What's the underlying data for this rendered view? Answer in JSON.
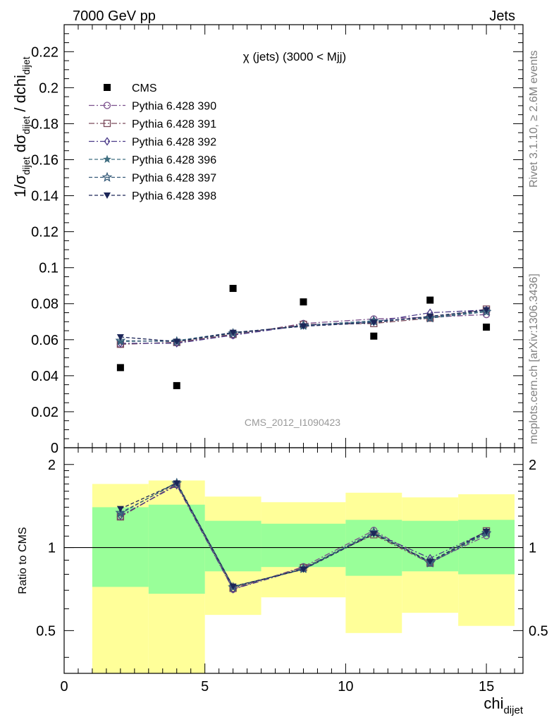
{
  "header": {
    "left": "7000 GeV pp",
    "right": "Jets"
  },
  "side_text": {
    "rivet": "Rivet 3.1.10, ≥ 2.6M events",
    "mcplots": "mcplots.cern.ch [arXiv:1306.3436]"
  },
  "chart_data": {
    "type": "scatter",
    "title": "χ (jets) (3000 < Mjj)",
    "analysis_label": "CMS_2012_I1090423",
    "xlabel": "chi",
    "xlabel_sub": "dijet",
    "ylabel_html": "1/σdijet dσdijet / dchidijet",
    "ylabel_parts": {
      "a": "1/σ",
      "a_sub": "dijet",
      "b": " dσ",
      "b_sub": "dijet",
      "c": " / dchi",
      "c_sub": "dijet"
    },
    "ratio_ylabel": "Ratio to CMS",
    "xlim": [
      0,
      16.3
    ],
    "ylim": [
      0,
      0.235
    ],
    "ratio_ylim": [
      0.35,
      2.3
    ],
    "x_ticks": [
      0,
      5,
      10,
      15
    ],
    "x_tick_labels": [
      "0",
      "5",
      "10",
      "15"
    ],
    "y_ticks": [
      0,
      0.02,
      0.04,
      0.06,
      0.08,
      0.1,
      0.12,
      0.14,
      0.16,
      0.18,
      0.2,
      0.22
    ],
    "y_tick_labels": [
      "0",
      "0.02",
      "0.04",
      "0.06",
      "0.08",
      "0.1",
      "0.12",
      "0.14",
      "0.16",
      "0.18",
      "0.2",
      "0.22"
    ],
    "ratio_ticks": [
      0.5,
      1,
      2
    ],
    "ratio_tick_labels": [
      "0.5",
      "1",
      "2"
    ],
    "legend_position": "top-left",
    "x": [
      2,
      4,
      6,
      8.5,
      11,
      13,
      15
    ],
    "bin_edges": [
      1,
      3,
      5,
      7,
      10,
      12,
      14,
      16
    ],
    "data": {
      "name": "CMS",
      "values": [
        0.0445,
        0.0345,
        0.0885,
        0.081,
        0.062,
        0.082,
        0.067
      ],
      "stat_band": [
        [
          0.72,
          1.4
        ],
        [
          0.68,
          1.43
        ],
        [
          0.82,
          1.25
        ],
        [
          0.85,
          1.22
        ],
        [
          0.79,
          1.26
        ],
        [
          0.82,
          1.25
        ],
        [
          0.8,
          1.26
        ]
      ],
      "total_band": [
        [
          0.3,
          1.7
        ],
        [
          0.3,
          1.75
        ],
        [
          0.57,
          1.53
        ],
        [
          0.66,
          1.46
        ],
        [
          0.49,
          1.58
        ],
        [
          0.58,
          1.52
        ],
        [
          0.52,
          1.56
        ]
      ]
    },
    "series": [
      {
        "name": "Pythia 6.428 390",
        "color": "#7b4f8c",
        "marker": "circle-open",
        "dash": "8,3,2,3",
        "values": [
          0.0575,
          0.0585,
          0.0625,
          0.069,
          0.0715,
          0.0725,
          0.074
        ]
      },
      {
        "name": "Pythia 6.428 391",
        "color": "#7a4a5a",
        "marker": "square-open",
        "dash": "8,3,2,3",
        "values": [
          0.0575,
          0.0585,
          0.063,
          0.0685,
          0.069,
          0.072,
          0.077
        ]
      },
      {
        "name": "Pythia 6.428 392",
        "color": "#4a3a88",
        "marker": "diamond-open",
        "dash": "8,3,2,3",
        "values": [
          0.058,
          0.058,
          0.0625,
          0.068,
          0.07,
          0.075,
          0.0765
        ]
      },
      {
        "name": "Pythia 6.428 396",
        "color": "#3f6e80",
        "marker": "star",
        "dash": "5,3",
        "values": [
          0.059,
          0.0595,
          0.064,
          0.0675,
          0.07,
          0.0725,
          0.076
        ]
      },
      {
        "name": "Pythia 6.428 397",
        "color": "#355a78",
        "marker": "star-open",
        "dash": "5,3",
        "values": [
          0.0595,
          0.059,
          0.0635,
          0.068,
          0.0705,
          0.072,
          0.0755
        ]
      },
      {
        "name": "Pythia 6.428 398",
        "color": "#1c2658",
        "marker": "triangle-down",
        "dash": "5,3",
        "values": [
          0.0615,
          0.059,
          0.064,
          0.0675,
          0.0695,
          0.073,
          0.0765
        ]
      }
    ]
  }
}
